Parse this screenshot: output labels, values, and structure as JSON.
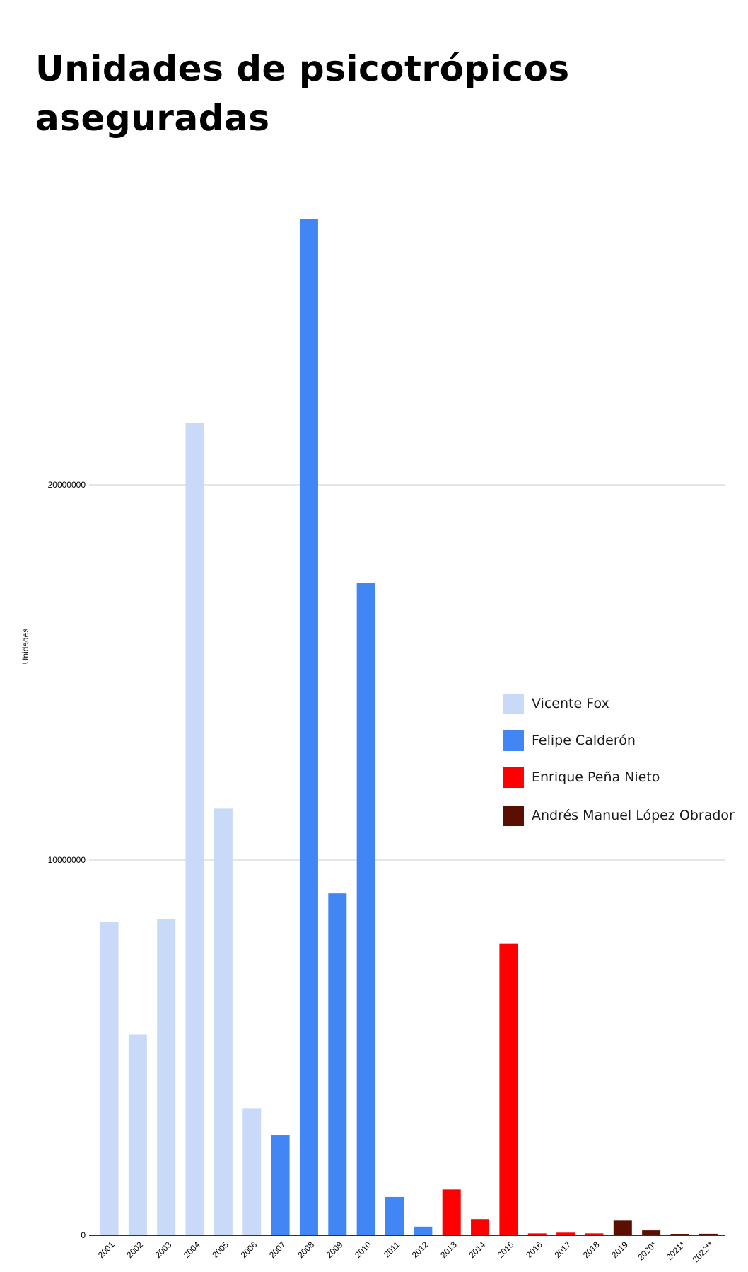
{
  "chart_data": {
    "type": "bar",
    "title": "Unidades de psicotrópicos aseguradas",
    "ylabel": "Unidades",
    "xlabel": "",
    "ylim": [
      0,
      27000000
    ],
    "y_ticks": [
      0,
      10000000,
      20000000
    ],
    "y_tick_labels": [
      "0",
      "10000000",
      "20000000"
    ],
    "grid": true,
    "legend_position": "right",
    "categories": [
      "2001",
      "2002",
      "2003",
      "2004",
      "2005",
      "2006",
      "2007",
      "2008",
      "2009",
      "2010",
      "2011",
      "2012",
      "2013",
      "2014",
      "2015",
      "2016",
      "2017",
      "2018",
      "2019",
      "2020*",
      "2021*",
      "2022**"
    ],
    "values": [
      8350000,
      5350000,
      8420000,
      21650000,
      11370000,
      3370000,
      2660000,
      27080000,
      9110000,
      17390000,
      1020000,
      230000,
      1220000,
      430000,
      7780000,
      50000,
      70000,
      50000,
      390000,
      130000,
      20000,
      40000
    ],
    "series": [
      {
        "name": "Vicente Fox",
        "color": "#c9daf8",
        "categories": [
          "2001",
          "2002",
          "2003",
          "2004",
          "2005",
          "2006"
        ]
      },
      {
        "name": "Felipe Calderón",
        "color": "#4285f4",
        "categories": [
          "2007",
          "2008",
          "2009",
          "2010",
          "2011",
          "2012"
        ]
      },
      {
        "name": "Enrique Peña Nieto",
        "color": "#ff0000",
        "categories": [
          "2013",
          "2014",
          "2015",
          "2016",
          "2017",
          "2018"
        ]
      },
      {
        "name": "Andrés Manuel López Obrador",
        "color": "#5b0f00",
        "categories": [
          "2019",
          "2020*",
          "2021*",
          "2022**"
        ]
      }
    ]
  }
}
